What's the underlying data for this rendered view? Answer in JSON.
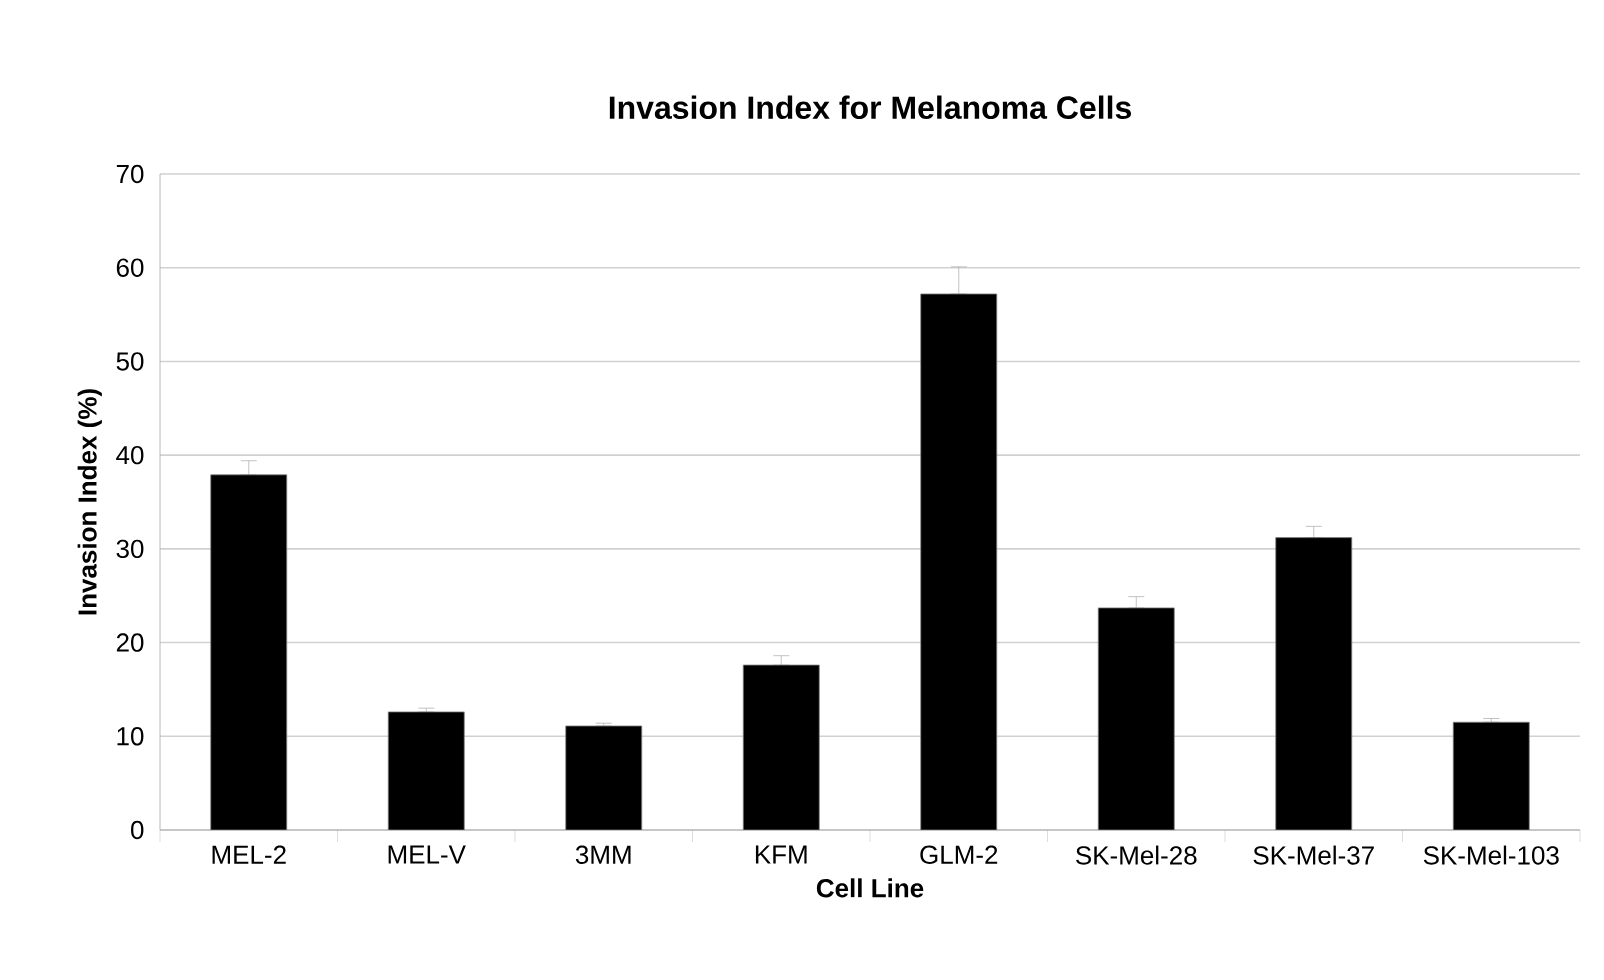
{
  "chart_data": {
    "type": "bar",
    "title": "Invasion Index for Melanoma Cells",
    "xlabel": "Cell Line",
    "ylabel": "Invasion Index (%)",
    "categories": [
      "MEL-2",
      "MEL-V",
      "3MM",
      "KFM",
      "GLM-2",
      "SK-Mel-28",
      "SK-Mel-37",
      "SK-Mel-103"
    ],
    "values": [
      37.9,
      12.6,
      11.1,
      17.6,
      57.2,
      23.7,
      31.2,
      11.5
    ],
    "errors": [
      [
        37.9,
        39.4
      ],
      [
        12.6,
        13.0
      ],
      [
        11.1,
        11.4
      ],
      [
        17.6,
        18.6
      ],
      [
        57.2,
        60.1
      ],
      [
        23.7,
        24.9
      ],
      [
        31.2,
        32.4
      ],
      [
        11.5,
        11.9
      ]
    ],
    "color": "#000000",
    "ylim": [
      0,
      70
    ],
    "yticks": [
      0,
      10,
      20,
      30,
      40,
      50,
      60,
      70
    ],
    "grid": "y"
  }
}
